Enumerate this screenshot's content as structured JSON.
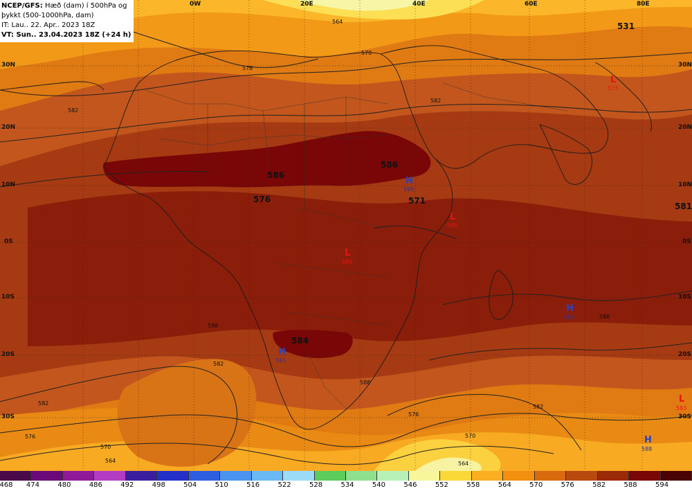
{
  "header": {
    "model": "NCEP/GFS:",
    "line1_rest": "Hæð (dam) í 500hPa og",
    "line2": "þykkt (500-1000hPa, dam)",
    "line3": "IT: Lau.. 22. Apr.. 2023 18Z",
    "line4": "VT: Sun.. 23.04.2023 18Z (+24 h)"
  },
  "lon_labels": [
    "0W",
    "20E",
    "40E",
    "60E",
    "80E"
  ],
  "lat_labels": [
    "30N",
    "20N",
    "10N",
    "0S",
    "10S",
    "20S",
    "30S"
  ],
  "pressure_centers": [
    {
      "type": "H",
      "value": "589",
      "color": "#2244cc"
    },
    {
      "type": "H",
      "value": "591",
      "color": "#2244cc"
    },
    {
      "type": "H",
      "value": "589",
      "color": "#2244cc"
    },
    {
      "type": "H",
      "value": "588",
      "color": "#2244cc"
    },
    {
      "type": "L",
      "value": "573",
      "color": "#ee1111"
    },
    {
      "type": "L",
      "value": "583",
      "color": "#ee1111"
    },
    {
      "type": "L",
      "value": "585",
      "color": "#ee1111"
    },
    {
      "type": "L",
      "value": "580",
      "color": "#ee1111"
    }
  ],
  "thickness_labels": [
    "586",
    "586",
    "576",
    "571",
    "584",
    "581",
    "531"
  ],
  "contour_labels": [
    "582",
    "576",
    "570",
    "564",
    "582",
    "588",
    "588",
    "582",
    "576",
    "570",
    "564",
    "582",
    "576",
    "570",
    "564",
    "588",
    "582"
  ],
  "colorbar": {
    "values": [
      "468",
      "474",
      "480",
      "486",
      "492",
      "498",
      "504",
      "510",
      "516",
      "522",
      "528",
      "534",
      "540",
      "546",
      "552",
      "558",
      "564",
      "570",
      "576",
      "582",
      "588",
      "594"
    ],
    "colors": [
      "#4a0a4a",
      "#6a0a7a",
      "#8e1a9a",
      "#b23cc2",
      "#3a1e9e",
      "#2430c8",
      "#2e5ee0",
      "#4a94f0",
      "#6ab8f4",
      "#9cdcf8",
      "#5ccc5c",
      "#8ee08e",
      "#b8f0b8",
      "#f6f69a",
      "#fbd83a",
      "#fbae22",
      "#f49010",
      "#d86a10",
      "#b84a10",
      "#9a2a08",
      "#7a0606",
      "#4a0202"
    ]
  }
}
